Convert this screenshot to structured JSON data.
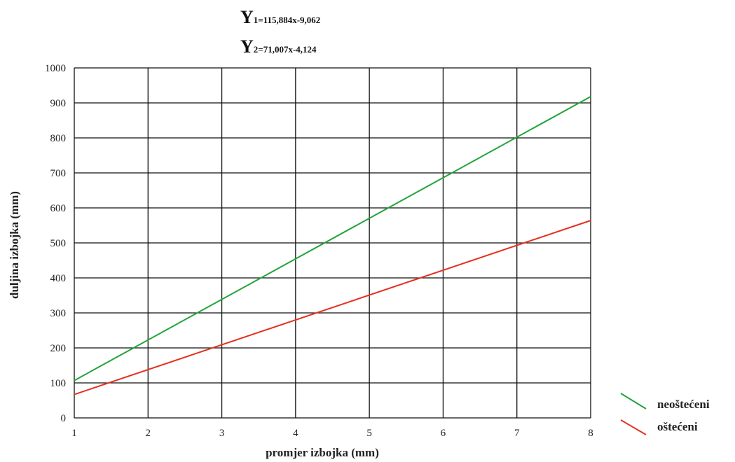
{
  "equations": {
    "eq1": {
      "main": "Y",
      "sub": "1=115,884x-9,062"
    },
    "eq2": {
      "main": "Y",
      "sub": "2=71,007x-4,124"
    }
  },
  "chart_data": {
    "type": "line",
    "title": "",
    "xlabel": "promjer izbojka (mm)",
    "ylabel": "duljina izbojka (mm)",
    "xlim": [
      1,
      8
    ],
    "ylim": [
      0,
      1000
    ],
    "x_ticks": [
      1,
      2,
      3,
      4,
      5,
      6,
      7,
      8
    ],
    "y_ticks": [
      0,
      100,
      200,
      300,
      400,
      500,
      600,
      700,
      800,
      900,
      1000
    ],
    "grid": true,
    "legend_position": "bottom-right",
    "series": [
      {
        "name": "neoštećeni",
        "color": "#22a33a",
        "x": [
          1,
          8
        ],
        "y": [
          106.8,
          918.0
        ]
      },
      {
        "name": "oštećeni",
        "color": "#e53020",
        "x": [
          1,
          8
        ],
        "y": [
          66.9,
          564.0
        ]
      }
    ]
  }
}
